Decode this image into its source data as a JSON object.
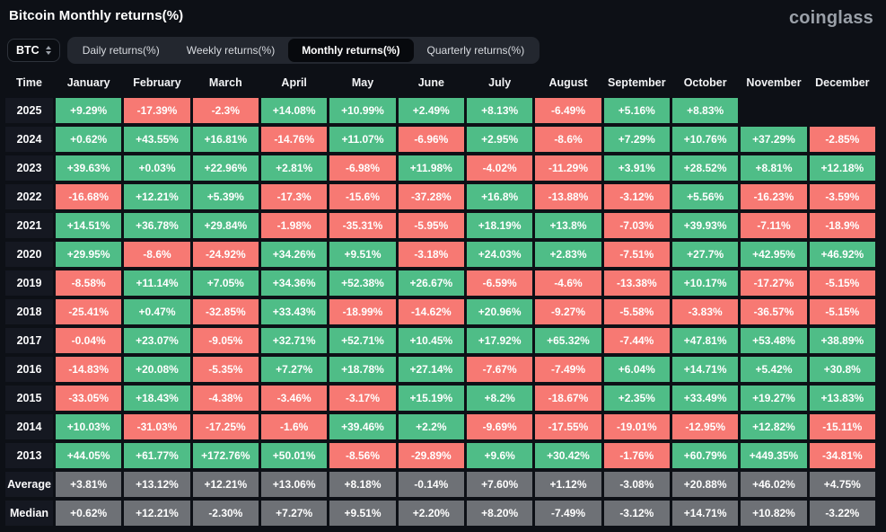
{
  "page": {
    "title": "Bitcoin Monthly returns(%)",
    "logo": "coinglass"
  },
  "controls": {
    "symbol": "BTC",
    "tabs": [
      {
        "label": "Daily returns(%)",
        "active": false
      },
      {
        "label": "Weekly returns(%)",
        "active": false
      },
      {
        "label": "Monthly returns(%)",
        "active": true
      },
      {
        "label": "Quarterly returns(%)",
        "active": false
      }
    ]
  },
  "colors": {
    "positive": "#4fbd87",
    "negative": "#f77973",
    "summary": "#6e7176",
    "background": "#0d1016"
  },
  "table": {
    "time_header": "Time",
    "columns": [
      "January",
      "February",
      "March",
      "April",
      "May",
      "June",
      "July",
      "August",
      "September",
      "October",
      "November",
      "December"
    ],
    "rows": [
      {
        "label": "2025",
        "kind": "year",
        "values": [
          "+9.29%",
          "-17.39%",
          "-2.3%",
          "+14.08%",
          "+10.99%",
          "+2.49%",
          "+8.13%",
          "-6.49%",
          "+5.16%",
          "+8.83%",
          "",
          ""
        ]
      },
      {
        "label": "2024",
        "kind": "year",
        "values": [
          "+0.62%",
          "+43.55%",
          "+16.81%",
          "-14.76%",
          "+11.07%",
          "-6.96%",
          "+2.95%",
          "-8.6%",
          "+7.29%",
          "+10.76%",
          "+37.29%",
          "-2.85%"
        ]
      },
      {
        "label": "2023",
        "kind": "year",
        "values": [
          "+39.63%",
          "+0.03%",
          "+22.96%",
          "+2.81%",
          "-6.98%",
          "+11.98%",
          "-4.02%",
          "-11.29%",
          "+3.91%",
          "+28.52%",
          "+8.81%",
          "+12.18%"
        ]
      },
      {
        "label": "2022",
        "kind": "year",
        "values": [
          "-16.68%",
          "+12.21%",
          "+5.39%",
          "-17.3%",
          "-15.6%",
          "-37.28%",
          "+16.8%",
          "-13.88%",
          "-3.12%",
          "+5.56%",
          "-16.23%",
          "-3.59%"
        ]
      },
      {
        "label": "2021",
        "kind": "year",
        "values": [
          "+14.51%",
          "+36.78%",
          "+29.84%",
          "-1.98%",
          "-35.31%",
          "-5.95%",
          "+18.19%",
          "+13.8%",
          "-7.03%",
          "+39.93%",
          "-7.11%",
          "-18.9%"
        ]
      },
      {
        "label": "2020",
        "kind": "year",
        "values": [
          "+29.95%",
          "-8.6%",
          "-24.92%",
          "+34.26%",
          "+9.51%",
          "-3.18%",
          "+24.03%",
          "+2.83%",
          "-7.51%",
          "+27.7%",
          "+42.95%",
          "+46.92%"
        ]
      },
      {
        "label": "2019",
        "kind": "year",
        "values": [
          "-8.58%",
          "+11.14%",
          "+7.05%",
          "+34.36%",
          "+52.38%",
          "+26.67%",
          "-6.59%",
          "-4.6%",
          "-13.38%",
          "+10.17%",
          "-17.27%",
          "-5.15%"
        ]
      },
      {
        "label": "2018",
        "kind": "year",
        "values": [
          "-25.41%",
          "+0.47%",
          "-32.85%",
          "+33.43%",
          "-18.99%",
          "-14.62%",
          "+20.96%",
          "-9.27%",
          "-5.58%",
          "-3.83%",
          "-36.57%",
          "-5.15%"
        ]
      },
      {
        "label": "2017",
        "kind": "year",
        "values": [
          "-0.04%",
          "+23.07%",
          "-9.05%",
          "+32.71%",
          "+52.71%",
          "+10.45%",
          "+17.92%",
          "+65.32%",
          "-7.44%",
          "+47.81%",
          "+53.48%",
          "+38.89%"
        ]
      },
      {
        "label": "2016",
        "kind": "year",
        "values": [
          "-14.83%",
          "+20.08%",
          "-5.35%",
          "+7.27%",
          "+18.78%",
          "+27.14%",
          "-7.67%",
          "-7.49%",
          "+6.04%",
          "+14.71%",
          "+5.42%",
          "+30.8%"
        ]
      },
      {
        "label": "2015",
        "kind": "year",
        "values": [
          "-33.05%",
          "+18.43%",
          "-4.38%",
          "-3.46%",
          "-3.17%",
          "+15.19%",
          "+8.2%",
          "-18.67%",
          "+2.35%",
          "+33.49%",
          "+19.27%",
          "+13.83%"
        ]
      },
      {
        "label": "2014",
        "kind": "year",
        "values": [
          "+10.03%",
          "-31.03%",
          "-17.25%",
          "-1.6%",
          "+39.46%",
          "+2.2%",
          "-9.69%",
          "-17.55%",
          "-19.01%",
          "-12.95%",
          "+12.82%",
          "-15.11%"
        ]
      },
      {
        "label": "2013",
        "kind": "year",
        "values": [
          "+44.05%",
          "+61.77%",
          "+172.76%",
          "+50.01%",
          "-8.56%",
          "-29.89%",
          "+9.6%",
          "+30.42%",
          "-1.76%",
          "+60.79%",
          "+449.35%",
          "-34.81%"
        ]
      },
      {
        "label": "Average",
        "kind": "summary",
        "values": [
          "+3.81%",
          "+13.12%",
          "+12.21%",
          "+13.06%",
          "+8.18%",
          "-0.14%",
          "+7.60%",
          "+1.12%",
          "-3.08%",
          "+20.88%",
          "+46.02%",
          "+4.75%"
        ]
      },
      {
        "label": "Median",
        "kind": "summary",
        "values": [
          "+0.62%",
          "+12.21%",
          "-2.30%",
          "+7.27%",
          "+9.51%",
          "+2.20%",
          "+8.20%",
          "-7.49%",
          "-3.12%",
          "+14.71%",
          "+10.82%",
          "-3.22%"
        ]
      }
    ]
  }
}
